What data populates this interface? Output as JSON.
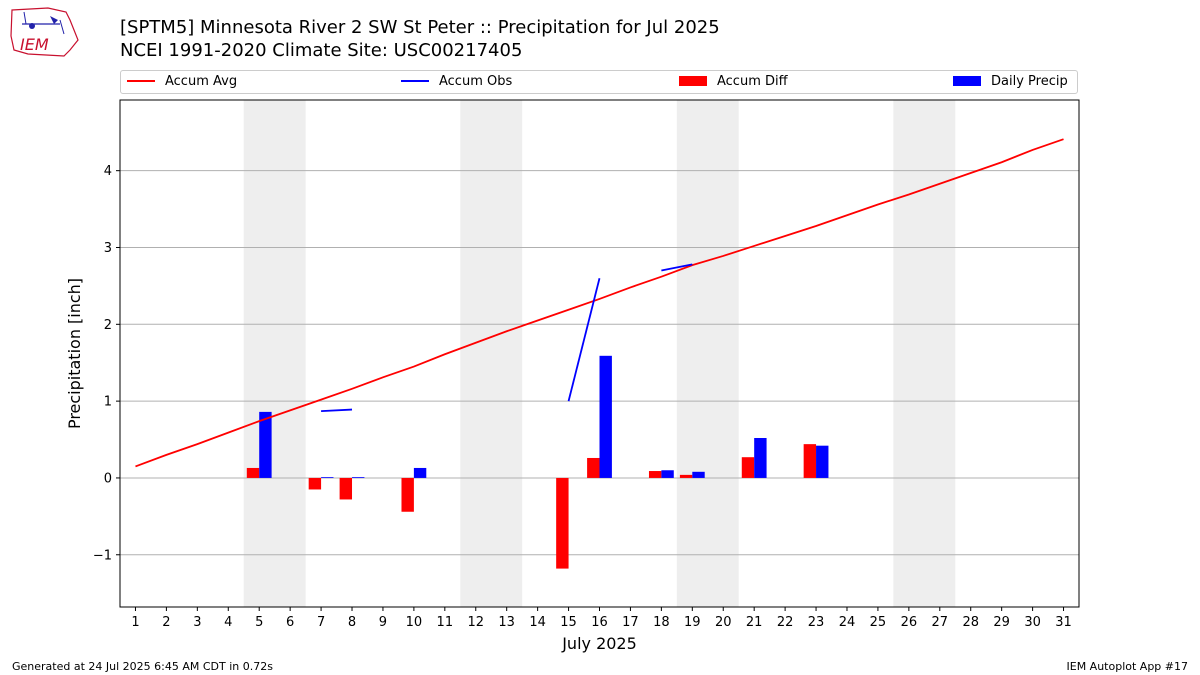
{
  "header": {
    "title_line1": "[SPTM5] Minnesota River 2 SW St Peter :: Precipitation for Jul 2025",
    "title_line2": "NCEI 1991-2020 Climate Site: USC00217405"
  },
  "logo": {
    "text": "IEM"
  },
  "legend": {
    "items": [
      {
        "label": "Accum Avg",
        "kind": "line",
        "color": "#ff0000"
      },
      {
        "label": "Accum Obs",
        "kind": "line",
        "color": "#0000ff"
      },
      {
        "label": "Accum Diff",
        "kind": "box",
        "color": "#ff0000"
      },
      {
        "label": "Daily Precip",
        "kind": "box",
        "color": "#0000ff"
      }
    ]
  },
  "footer": {
    "left": "Generated at 24 Jul 2025 6:45 AM CDT in 0.72s",
    "right": "IEM Autoplot App #17"
  },
  "chart_data": {
    "type": "bar",
    "xlabel": "July 2025",
    "ylabel": "Precipitation [inch]",
    "xlim": [
      0.5,
      31.5
    ],
    "ylim": [
      -1.68,
      4.92
    ],
    "x_ticks": [
      1,
      2,
      3,
      4,
      5,
      6,
      7,
      8,
      9,
      10,
      11,
      12,
      13,
      14,
      15,
      16,
      17,
      18,
      19,
      20,
      21,
      22,
      23,
      24,
      25,
      26,
      27,
      28,
      29,
      30,
      31
    ],
    "y_ticks": [
      -1,
      0,
      1,
      2,
      3,
      4
    ],
    "grid": "y",
    "weekend_shading": [
      [
        4.5,
        6.5
      ],
      [
        11.5,
        13.5
      ],
      [
        18.5,
        20.5
      ],
      [
        25.5,
        27.5
      ]
    ],
    "colors": {
      "avg": "#ff0000",
      "obs": "#0000ff",
      "diff": "#ff0000",
      "daily": "#0000ff",
      "weekend": "#eeeeee"
    },
    "accum_avg": {
      "x": [
        1,
        2,
        3,
        4,
        5,
        6,
        7,
        8,
        9,
        10,
        11,
        12,
        13,
        14,
        15,
        16,
        17,
        18,
        19,
        20,
        21,
        22,
        23,
        24,
        25,
        26,
        27,
        28,
        29,
        30,
        31
      ],
      "y": [
        0.15,
        0.3,
        0.44,
        0.59,
        0.74,
        0.88,
        1.02,
        1.16,
        1.31,
        1.45,
        1.61,
        1.76,
        1.91,
        2.05,
        2.19,
        2.33,
        2.48,
        2.62,
        2.77,
        2.89,
        3.02,
        3.15,
        3.28,
        3.42,
        3.56,
        3.69,
        3.83,
        3.97,
        4.11,
        4.27,
        4.41
      ]
    },
    "accum_obs": [
      {
        "x": [
          7,
          8
        ],
        "y": [
          0.87,
          0.89
        ]
      },
      {
        "x": [
          15,
          16
        ],
        "y": [
          1.0,
          2.6
        ]
      },
      {
        "x": [
          18,
          19
        ],
        "y": [
          2.7,
          2.78
        ]
      }
    ],
    "accum_diff": {
      "x": [
        5,
        7,
        8,
        10,
        15,
        16,
        18,
        19,
        21,
        23
      ],
      "values": [
        0.13,
        -0.15,
        -0.28,
        -0.44,
        -1.18,
        0.26,
        0.09,
        0.04,
        0.27,
        0.44
      ]
    },
    "daily_precip": {
      "x": [
        5,
        7,
        8,
        10,
        16,
        18,
        19,
        21,
        23
      ],
      "values": [
        0.86,
        0.01,
        0.01,
        0.13,
        1.59,
        0.1,
        0.08,
        0.52,
        0.42
      ]
    }
  }
}
